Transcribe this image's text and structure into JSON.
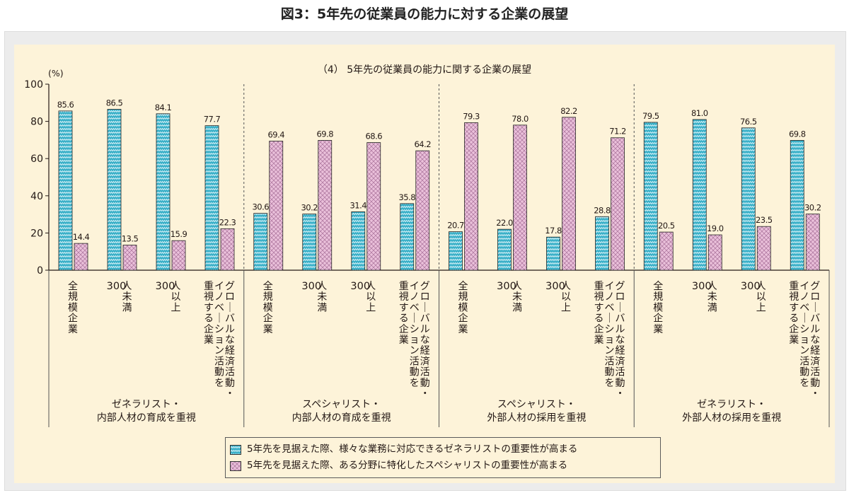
{
  "page": {
    "title": "図3：5年先の従業員の能力に対する企業の展望"
  },
  "chart_data": {
    "type": "bar",
    "title": "（4） 5年先の従業員の能力に関する企業の展望",
    "ylabel": "(%)",
    "ylim": [
      0,
      100
    ],
    "yticks": [
      0,
      20,
      40,
      60,
      80,
      100
    ],
    "grid": false,
    "legend_position": "bottom",
    "series": [
      {
        "name": "5年先を見据えた際、様々な業務に対応できるゼネラリストの重要性が高まる",
        "color": "#3ab0c8"
      },
      {
        "name": "5年先を見据えた際、ある分野に特化したスペシャリストの重要性が高まる",
        "color": "#e8b8d6"
      }
    ],
    "groups": [
      {
        "label_lines": [
          "ゼネラリスト・",
          "内部人材の育成を重視"
        ],
        "categories": [
          {
            "label": "全規模企業",
            "values": [
              85.6,
              14.4
            ]
          },
          {
            "label": "300人未満",
            "values": [
              86.5,
              13.5
            ]
          },
          {
            "label": "300人以上",
            "values": [
              84.1,
              15.9
            ]
          },
          {
            "label": "グローバルな経済活動・イノベーション活動を重視する企業",
            "values": [
              77.7,
              22.3
            ]
          }
        ]
      },
      {
        "label_lines": [
          "スペシャリスト・",
          "内部人材の育成を重視"
        ],
        "categories": [
          {
            "label": "全規模企業",
            "values": [
              30.6,
              69.4
            ]
          },
          {
            "label": "300人未満",
            "values": [
              30.2,
              69.8
            ]
          },
          {
            "label": "300人以上",
            "values": [
              31.4,
              68.6
            ]
          },
          {
            "label": "グローバルな経済活動・イノベーション活動を重視する企業",
            "values": [
              35.8,
              64.2
            ]
          }
        ]
      },
      {
        "label_lines": [
          "スペシャリスト・",
          "外部人材の採用を重視"
        ],
        "categories": [
          {
            "label": "全規模企業",
            "values": [
              20.7,
              79.3
            ]
          },
          {
            "label": "300人未満",
            "values": [
              22.0,
              78.0
            ]
          },
          {
            "label": "300人以上",
            "values": [
              17.8,
              82.2
            ]
          },
          {
            "label": "グローバルな経済活動・イノベーション活動を重視する企業",
            "values": [
              28.8,
              71.2
            ]
          }
        ]
      },
      {
        "label_lines": [
          "ゼネラリスト・",
          "外部人材の採用を重視"
        ],
        "categories": [
          {
            "label": "全規模企業",
            "values": [
              79.5,
              20.5
            ]
          },
          {
            "label": "300人未満",
            "values": [
              81.0,
              19.0
            ]
          },
          {
            "label": "300人以上",
            "values": [
              76.5,
              23.5
            ]
          },
          {
            "label": "グローバルな経済活動・イノベーション活動を重視する企業",
            "values": [
              69.8,
              30.2
            ]
          }
        ]
      }
    ],
    "x_label_columns": {
      "all": [
        [
          "全規模企業"
        ]
      ],
      "under300": [
        [
          "300"
        ],
        [
          "人未満"
        ]
      ],
      "over300": [
        [
          "300"
        ],
        [
          "人以上"
        ]
      ],
      "global": [
        [
          "重視する企業"
        ],
        [
          "イノベーション活動を"
        ],
        [
          "グローバルな経済活動・"
        ]
      ]
    }
  }
}
